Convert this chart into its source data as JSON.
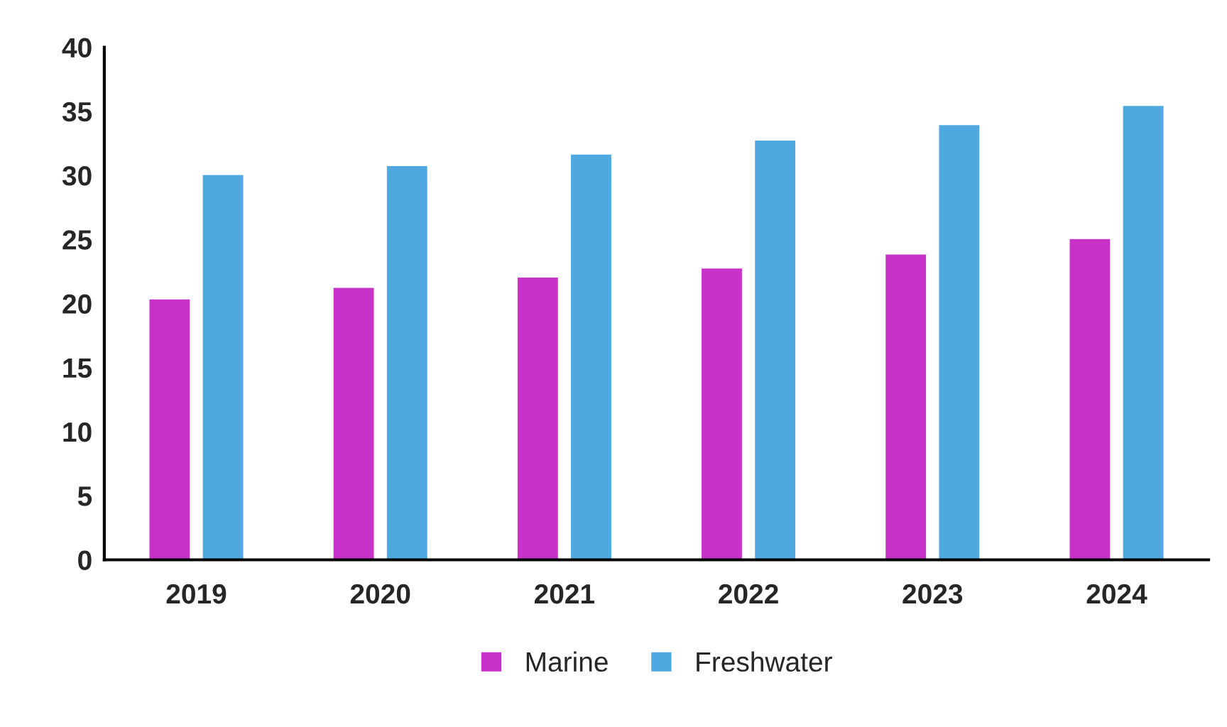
{
  "chart_data": {
    "type": "bar",
    "categories": [
      "2019",
      "2020",
      "2021",
      "2022",
      "2023",
      "2024"
    ],
    "series": [
      {
        "name": "Marine",
        "color": "#c832c8",
        "values": [
          20.4,
          21.3,
          22.1,
          22.8,
          23.9,
          25.1
        ]
      },
      {
        "name": "Freshwater",
        "color": "#4fa8df",
        "values": [
          30.1,
          30.8,
          31.7,
          32.8,
          34.0,
          35.5
        ]
      }
    ],
    "ylim": [
      0,
      40
    ],
    "yticks": [
      0,
      5,
      10,
      15,
      20,
      25,
      30,
      35,
      40
    ],
    "grid": false,
    "legend": "bottom"
  }
}
